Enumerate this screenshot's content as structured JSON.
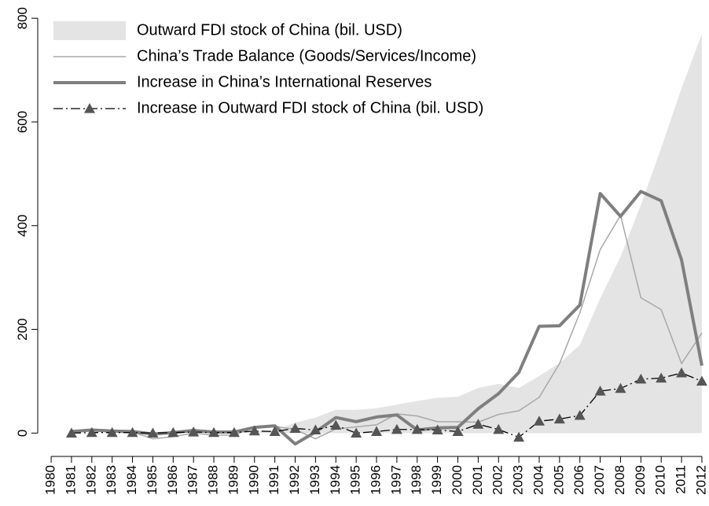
{
  "chart_data": {
    "type": "line",
    "x": [
      1980,
      1981,
      1982,
      1983,
      1984,
      1985,
      1986,
      1987,
      1988,
      1989,
      1990,
      1991,
      1992,
      1993,
      1994,
      1995,
      1996,
      1997,
      1998,
      1999,
      2000,
      2001,
      2002,
      2003,
      2004,
      2005,
      2006,
      2007,
      2008,
      2009,
      2010,
      2011,
      2012
    ],
    "xlim": [
      1979.34,
      2012.35
    ],
    "xticks": [
      1980,
      1981,
      1982,
      1983,
      1984,
      1985,
      1986,
      1987,
      1988,
      1989,
      1990,
      1991,
      1992,
      1993,
      1994,
      1995,
      1996,
      1997,
      1998,
      1999,
      2000,
      2001,
      2002,
      2003,
      2004,
      2005,
      2006,
      2007,
      2008,
      2009,
      2010,
      2011,
      2012
    ],
    "ylim": [
      -45,
      820
    ],
    "yticks": [
      0,
      200,
      400,
      600,
      800
    ],
    "legend": "upper left",
    "series": [
      {
        "name": "Outward FDI stock of China (bil. USD)",
        "style": "area",
        "color": "#e4e4e4",
        "values": [
          0,
          0,
          0,
          1,
          1,
          1,
          2,
          3,
          4,
          5,
          4,
          5,
          20,
          30,
          45,
          45,
          48,
          55,
          62,
          68,
          70,
          87,
          95,
          87,
          110,
          135,
          170,
          260,
          340,
          440,
          550,
          665,
          770
        ]
      },
      {
        "name": "China’s Trade Balance (Goods/Services/Income)",
        "style": "line",
        "color": "#a8a8a8",
        "width": 1.5,
        "values": [
          null,
          3,
          7,
          5,
          2,
          -11,
          -7,
          0,
          -4,
          -4,
          11,
          13,
          7,
          -11,
          8,
          12,
          16,
          37,
          33,
          22,
          22,
          21,
          36,
          43,
          69,
          134,
          232,
          354,
          420,
          261,
          238,
          134,
          193
        ]
      },
      {
        "name": "Increase in China’s International Reserves",
        "style": "line",
        "color": "#7f7f7f",
        "width": 4,
        "values": [
          null,
          3,
          6,
          4,
          3,
          -2,
          1,
          5,
          2,
          2,
          11,
          14,
          -21,
          2,
          30,
          22,
          31,
          35,
          6,
          10,
          11,
          47,
          76,
          117,
          206,
          207,
          247,
          462,
          418,
          466,
          448,
          334,
          130
        ]
      },
      {
        "name": "Increase in Outward FDI stock of China (bil. USD)",
        "style": "line-marker",
        "color": "#000000",
        "width": 1.3,
        "values": [
          null,
          0,
          1,
          1,
          1,
          0,
          1,
          2,
          1,
          1,
          4,
          3,
          9,
          6,
          15,
          0,
          3,
          7,
          7,
          6,
          3,
          17,
          7,
          -8,
          23,
          27,
          34,
          81,
          86,
          104,
          106,
          116,
          100
        ]
      }
    ]
  }
}
